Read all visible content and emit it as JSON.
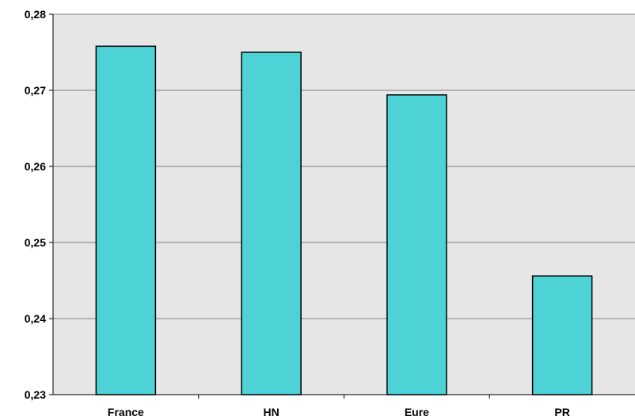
{
  "chart_data": {
    "type": "bar",
    "categories": [
      "France",
      "HN",
      "Eure",
      "PR"
    ],
    "values": [
      0.2758,
      0.275,
      0.2694,
      0.2456
    ],
    "ylim": [
      0.23,
      0.28
    ],
    "yticks": [
      0.23,
      0.24,
      0.25,
      0.26,
      0.27,
      0.28
    ],
    "ytick_labels": [
      "0,23",
      "0,24",
      "0,25",
      "0,26",
      "0,27",
      "0,28"
    ],
    "title": "",
    "xlabel": "",
    "ylabel": "",
    "grid": true,
    "colors": {
      "bar_fill": "#4dd2d6",
      "bar_stroke": "#000000",
      "plot_background": "#e6e6e6",
      "gridline": "#808080"
    }
  }
}
